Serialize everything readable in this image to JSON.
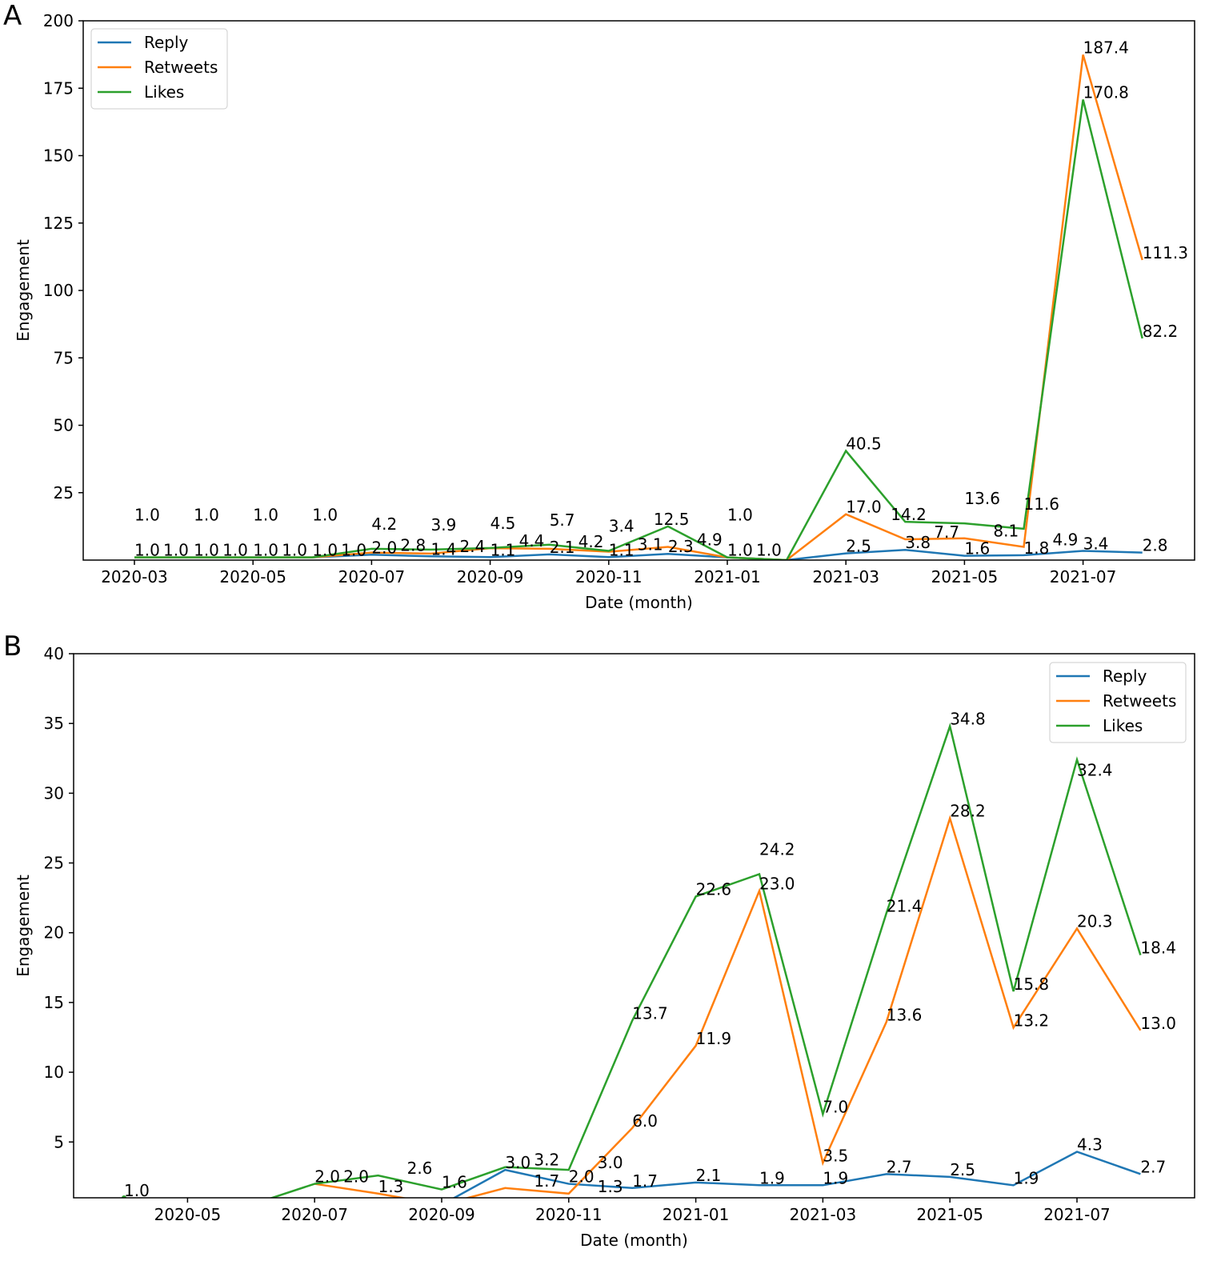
{
  "colors": {
    "Reply": "#1f77b4",
    "Retweets": "#ff7f0e",
    "Likes": "#2ca02c"
  },
  "chart_data": [
    {
      "panel": "A",
      "type": "line",
      "xlabel": "Date (month)",
      "ylabel": "Engagement",
      "ylim": [
        0,
        200
      ],
      "yticks": [
        25,
        50,
        75,
        100,
        125,
        150,
        175,
        200
      ],
      "x": [
        "2020-03",
        "2020-04",
        "2020-05",
        "2020-06",
        "2020-07",
        "2020-08",
        "2020-09",
        "2020-10",
        "2020-11",
        "2020-12",
        "2021-01",
        "2021-02",
        "2021-03",
        "2021-04",
        "2021-05",
        "2021-06",
        "2021-07",
        "2021-08"
      ],
      "xticks": [
        "2020-03",
        "2020-05",
        "2020-07",
        "2020-09",
        "2020-11",
        "2021-01",
        "2021-03",
        "2021-05",
        "2021-07"
      ],
      "legend": "top-left",
      "series": [
        {
          "name": "Reply",
          "values": [
            1.0,
            1.0,
            1.0,
            1.0,
            2.0,
            1.4,
            1.1,
            2.1,
            1.1,
            2.3,
            1.0,
            0,
            2.5,
            3.8,
            1.6,
            1.8,
            3.4,
            2.8
          ]
        },
        {
          "name": "Retweets",
          "values": [
            1.0,
            1.0,
            1.0,
            1.0,
            2.8,
            2.4,
            4.4,
            4.2,
            3.1,
            4.9,
            1.0,
            0,
            17.0,
            7.7,
            8.1,
            4.9,
            187.4,
            111.3
          ]
        },
        {
          "name": "Likes",
          "values": [
            1.0,
            1.0,
            1.0,
            1.0,
            4.2,
            3.9,
            4.5,
            5.7,
            3.4,
            12.5,
            1.0,
            0,
            40.5,
            14.2,
            13.6,
            11.6,
            170.8,
            82.2
          ]
        }
      ]
    },
    {
      "panel": "B",
      "type": "line",
      "xlabel": "Date (month)",
      "ylabel": "Engagement",
      "ylim": [
        1,
        40
      ],
      "yticks": [
        5,
        10,
        15,
        20,
        25,
        30,
        35,
        40
      ],
      "x": [
        "2020-04",
        "2020-05",
        "2020-06",
        "2020-07",
        "2020-08",
        "2020-09",
        "2020-10",
        "2020-11",
        "2020-12",
        "2021-01",
        "2021-02",
        "2021-03",
        "2021-04",
        "2021-05",
        "2021-06",
        "2021-07",
        "2021-08"
      ],
      "xticks": [
        "2020-05",
        "2020-07",
        "2020-09",
        "2020-11",
        "2021-01",
        "2021-03",
        "2021-05",
        "2021-07"
      ],
      "legend": "top-right",
      "series": [
        {
          "name": "Reply",
          "values": [
            null,
            null,
            null,
            null,
            0.8,
            0.5,
            3.0,
            2.0,
            1.7,
            2.1,
            1.9,
            1.9,
            2.7,
            2.5,
            1.9,
            4.3,
            2.7
          ]
        },
        {
          "name": "Retweets",
          "values": [
            null,
            null,
            null,
            2.0,
            1.3,
            0.5,
            1.7,
            1.3,
            6.0,
            11.9,
            23.0,
            3.5,
            13.6,
            28.2,
            13.2,
            20.3,
            13.0
          ]
        },
        {
          "name": "Likes",
          "values": [
            1.0,
            null,
            0.5,
            2.0,
            2.6,
            1.6,
            3.2,
            3.0,
            13.7,
            22.6,
            24.2,
            7.0,
            21.4,
            34.8,
            15.8,
            32.4,
            18.4
          ]
        }
      ]
    }
  ]
}
